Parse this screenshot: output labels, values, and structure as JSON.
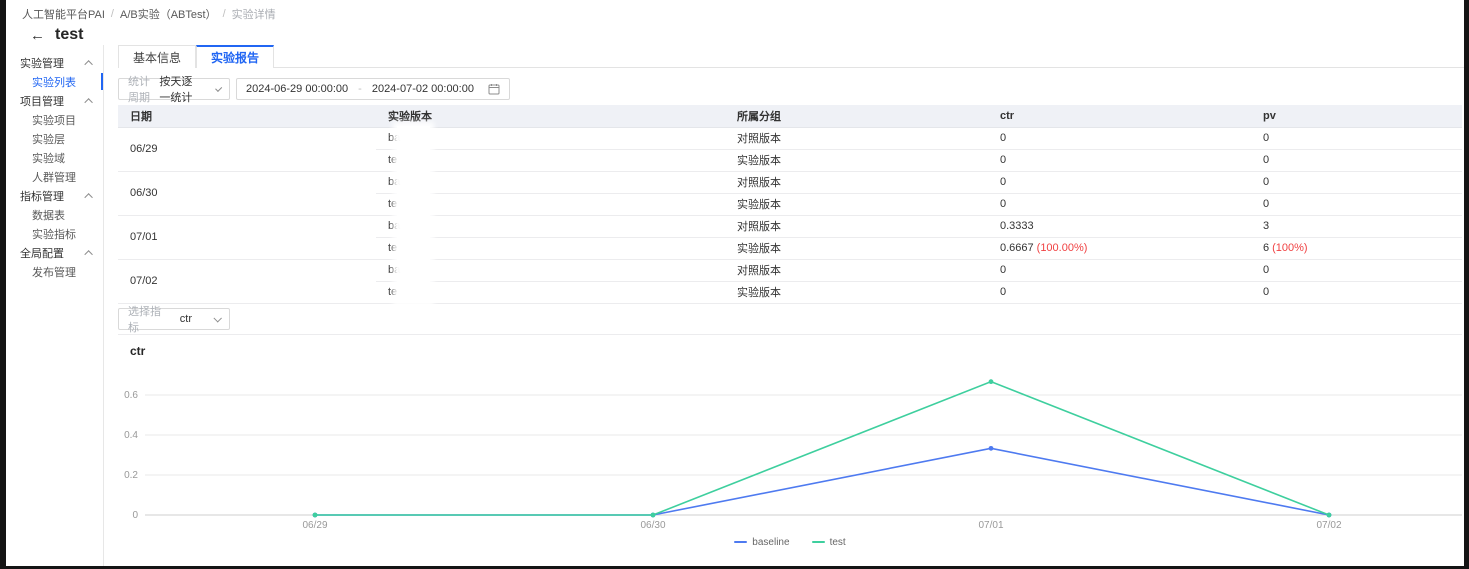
{
  "breadcrumb": {
    "items": [
      "人工智能平台PAI",
      "A/B实验（ABTest）",
      "实验详情"
    ],
    "separator": "/"
  },
  "page": {
    "title": "test",
    "back_icon": "←"
  },
  "sidebar": {
    "groups": [
      {
        "label": "实验管理",
        "items": [
          {
            "label": "实验列表",
            "selected": true
          }
        ]
      },
      {
        "label": "项目管理",
        "items": [
          {
            "label": "实验项目"
          },
          {
            "label": "实验层"
          },
          {
            "label": "实验域"
          },
          {
            "label": "人群管理"
          }
        ]
      },
      {
        "label": "指标管理",
        "items": [
          {
            "label": "数据表"
          },
          {
            "label": "实验指标"
          }
        ]
      },
      {
        "label": "全局配置",
        "items": [
          {
            "label": "发布管理"
          }
        ]
      }
    ]
  },
  "tabs": [
    {
      "label": "基本信息",
      "active": false
    },
    {
      "label": "实验报告",
      "active": true
    }
  ],
  "filters": {
    "period_label": "统计周期",
    "period_value": "按天逐一统计",
    "date_start": "2024-06-29 00:00:00",
    "date_separator": "-",
    "date_end": "2024-07-02 00:00:00"
  },
  "table": {
    "columns": [
      "日期",
      "实验版本",
      "所属分组",
      "ctr",
      "pv"
    ],
    "groups": [
      {
        "date": "06/29",
        "rows": [
          {
            "version_prefix": "ba",
            "group": "对照版本",
            "ctr": "0",
            "ctr_delta": "",
            "pv": "0",
            "pv_delta": ""
          },
          {
            "version_prefix": "te",
            "group": "实验版本",
            "ctr": "0",
            "ctr_delta": "",
            "pv": "0",
            "pv_delta": ""
          }
        ]
      },
      {
        "date": "06/30",
        "rows": [
          {
            "version_prefix": "ba",
            "group": "对照版本",
            "ctr": "0",
            "ctr_delta": "",
            "pv": "0",
            "pv_delta": ""
          },
          {
            "version_prefix": "te",
            "group": "实验版本",
            "ctr": "0",
            "ctr_delta": "",
            "pv": "0",
            "pv_delta": ""
          }
        ]
      },
      {
        "date": "07/01",
        "rows": [
          {
            "version_prefix": "ba",
            "group": "对照版本",
            "ctr": "0.3333",
            "ctr_delta": "",
            "pv": "3",
            "pv_delta": ""
          },
          {
            "version_prefix": "te",
            "group": "实验版本",
            "ctr": "0.6667",
            "ctr_delta": "(100.00%)",
            "pv": "6",
            "pv_delta": "(100%)"
          }
        ]
      },
      {
        "date": "07/02",
        "rows": [
          {
            "version_prefix": "ba",
            "group": "对照版本",
            "ctr": "0",
            "ctr_delta": "",
            "pv": "0",
            "pv_delta": ""
          },
          {
            "version_prefix": "te",
            "group": "实验版本",
            "ctr": "0",
            "ctr_delta": "",
            "pv": "0",
            "pv_delta": ""
          }
        ]
      }
    ]
  },
  "metric_select": {
    "label": "选择指标",
    "value": "ctr"
  },
  "chart_data": {
    "type": "line",
    "title": "ctr",
    "categories": [
      "06/29",
      "06/30",
      "07/01",
      "07/02"
    ],
    "series": [
      {
        "name": "baseline",
        "color": "#4e7af0",
        "values": [
          0,
          0,
          0.3333,
          0
        ]
      },
      {
        "name": "test",
        "color": "#3ecf9e",
        "values": [
          0,
          0,
          0.6667,
          0
        ]
      }
    ],
    "yticks": [
      0,
      0.2,
      0.4,
      0.6
    ],
    "ylim": [
      0,
      0.7
    ],
    "xlabel": "",
    "ylabel": "",
    "grid": true,
    "legend_position": "bottom"
  },
  "colors": {
    "accent": "#2166f3",
    "delta_red": "#f04142",
    "grid_line": "#e9e9e9",
    "axis_line": "#cfcfcf"
  },
  "icons": {
    "back": "back-arrow",
    "group_collapse": "chevron-up",
    "select_open": "chevron-down",
    "date_picker": "calendar"
  }
}
